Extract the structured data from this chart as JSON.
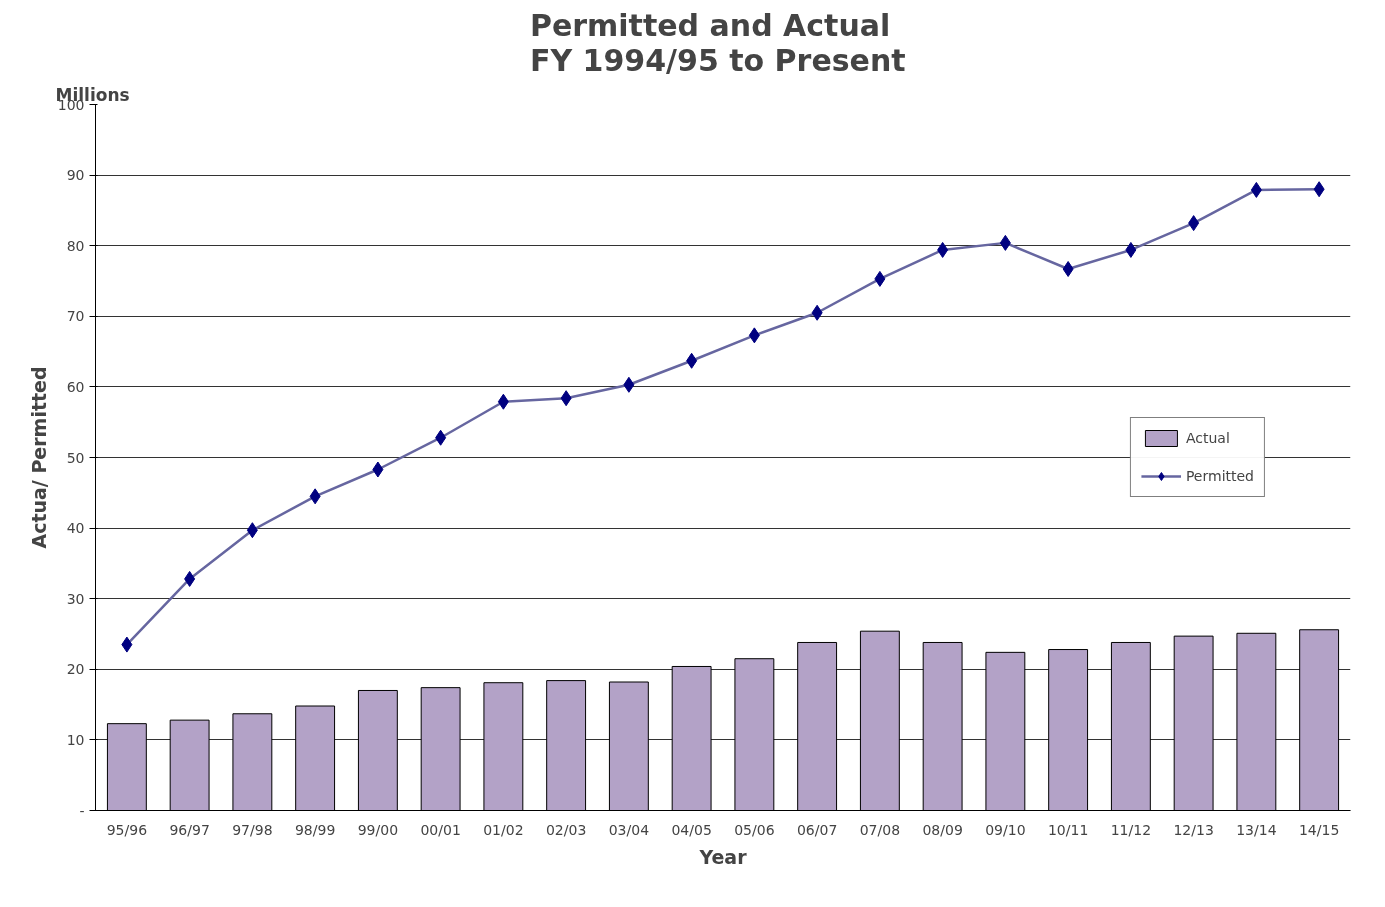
{
  "chart_data": {
    "type": "bar",
    "title": "Permitted and Actual\nFY 1994/95  to Present",
    "xlabel": "Year",
    "ylabel": "Actua/ Permitted",
    "annotations": [
      "Millions"
    ],
    "categories": [
      "95/96",
      "96/97",
      "97/98",
      "98/99",
      "99/00",
      "00/01",
      "01/02",
      "02/03",
      "03/04",
      "04/05",
      "05/06",
      "06/07",
      "07/08",
      "08/09",
      "09/10",
      "10/11",
      "11/12",
      "12/13",
      "13/14",
      "14/15"
    ],
    "series": [
      {
        "name": "Actual",
        "color": "#b3a2c7",
        "values": [
          12.3,
          12.8,
          13.7,
          14.8,
          17.0,
          17.4,
          18.1,
          18.4,
          18.2,
          20.4,
          21.5,
          23.8,
          25.4,
          23.8,
          22.4,
          22.8,
          23.8,
          24.7,
          25.1,
          25.6
        ]
      },
      {
        "name": "Permitted",
        "type": "line",
        "color": "#6666a0",
        "marker": "diamond",
        "values": [
          23.5,
          32.8,
          39.7,
          44.5,
          48.3,
          52.8,
          57.9,
          58.4,
          60.3,
          63.7,
          67.3,
          70.5,
          75.3,
          79.4,
          80.4,
          76.7,
          79.4,
          83.2,
          87.9,
          88.0
        ]
      }
    ],
    "ylim": [
      0,
      100
    ],
    "yticks": [
      {
        "value": 0,
        "label": "-"
      },
      10,
      20,
      30,
      40,
      50,
      60,
      70,
      80,
      90,
      100
    ],
    "grid": "y",
    "legend": "right"
  }
}
